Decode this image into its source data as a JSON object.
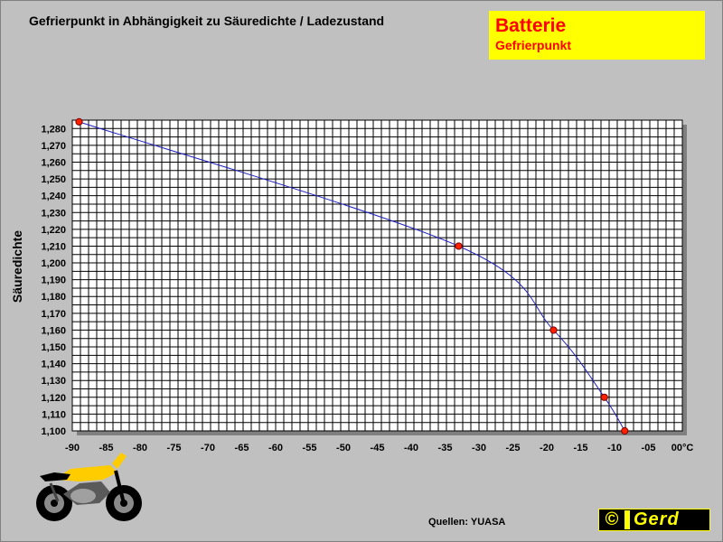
{
  "header": {
    "title": "Gefrierpunkt in Abhängigkeit zu Säuredichte / Ladezustand"
  },
  "badge": {
    "title": "Batterie",
    "subtitle": "Gefrierpunkt",
    "background": "#ffff00",
    "text_color": "#ff0000"
  },
  "footer": {
    "source": "Quellen: YUASA",
    "copyright_symbol": "©",
    "copyright_name": "Gerd"
  },
  "illustration": {
    "icon": "motorcycle-icon",
    "colors": [
      "#ffcc00",
      "#000000",
      "#a0a0a0"
    ]
  },
  "chart_data": {
    "type": "line",
    "title": "Gefrierpunkt in Abhängigkeit zu Säuredichte / Ladezustand",
    "xlabel": "",
    "ylabel": "Säuredichte",
    "xlim": [
      -90,
      0
    ],
    "ylim": [
      1.1,
      1.285
    ],
    "x_tick_labels": [
      "-90",
      "-85",
      "-80",
      "-75",
      "-70",
      "-65",
      "-60",
      "-55",
      "-50",
      "-45",
      "-40",
      "-35",
      "-30",
      "-25",
      "-20",
      "-15",
      "-10",
      "-05",
      "00°C"
    ],
    "x_tick_values": [
      -90,
      -85,
      -80,
      -75,
      -70,
      -65,
      -60,
      -55,
      -50,
      -45,
      -40,
      -35,
      -30,
      -25,
      -20,
      -15,
      -10,
      -5,
      0
    ],
    "y_tick_labels": [
      "1,100",
      "1,110",
      "1,120",
      "1,130",
      "1,140",
      "1,150",
      "1,160",
      "1,170",
      "1,180",
      "1,190",
      "1,200",
      "1,210",
      "1,220",
      "1,230",
      "1,240",
      "1,250",
      "1,260",
      "1,270",
      "1,280"
    ],
    "y_tick_values": [
      1.1,
      1.11,
      1.12,
      1.13,
      1.14,
      1.15,
      1.16,
      1.17,
      1.18,
      1.19,
      1.2,
      1.21,
      1.22,
      1.23,
      1.24,
      1.25,
      1.26,
      1.27,
      1.28
    ],
    "grid": true,
    "plot_background": "#ffffff",
    "grid_color": "#000000",
    "line_color": "#2020c0",
    "marker_color": "#ff2000",
    "series": [
      {
        "points": [
          {
            "x": -89,
            "y": 1.284
          },
          {
            "x": -33,
            "y": 1.21
          },
          {
            "x": -19,
            "y": 1.16
          },
          {
            "x": -11.5,
            "y": 1.12
          },
          {
            "x": -8.5,
            "y": 1.1
          }
        ]
      }
    ]
  }
}
